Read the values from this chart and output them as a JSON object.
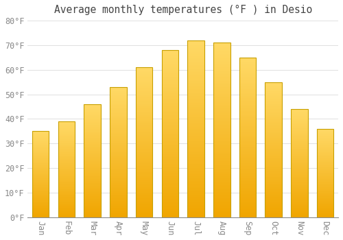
{
  "title": "Average monthly temperatures (°F ) in Desio",
  "months": [
    "Jan",
    "Feb",
    "Mar",
    "Apr",
    "May",
    "Jun",
    "Jul",
    "Aug",
    "Sep",
    "Oct",
    "Nov",
    "Dec"
  ],
  "values": [
    35,
    39,
    46,
    53,
    61,
    68,
    72,
    71,
    65,
    55,
    44,
    36
  ],
  "ylim": [
    0,
    80
  ],
  "yticks": [
    0,
    10,
    20,
    30,
    40,
    50,
    60,
    70,
    80
  ],
  "ytick_labels": [
    "0°F",
    "10°F",
    "20°F",
    "30°F",
    "40°F",
    "50°F",
    "60°F",
    "70°F",
    "80°F"
  ],
  "bar_color_bottom": "#F0A500",
  "bar_color_top": "#FFD966",
  "bar_border_color": "#C8A000",
  "background_color": "#FFFFFF",
  "plot_bg_color": "#FFFFFF",
  "grid_color": "#E0E0E0",
  "title_color": "#444444",
  "tick_color": "#888888",
  "title_fontsize": 10.5,
  "tick_fontsize": 8.5,
  "bar_width": 0.65,
  "figsize": [
    5.0,
    3.5
  ],
  "dpi": 100
}
